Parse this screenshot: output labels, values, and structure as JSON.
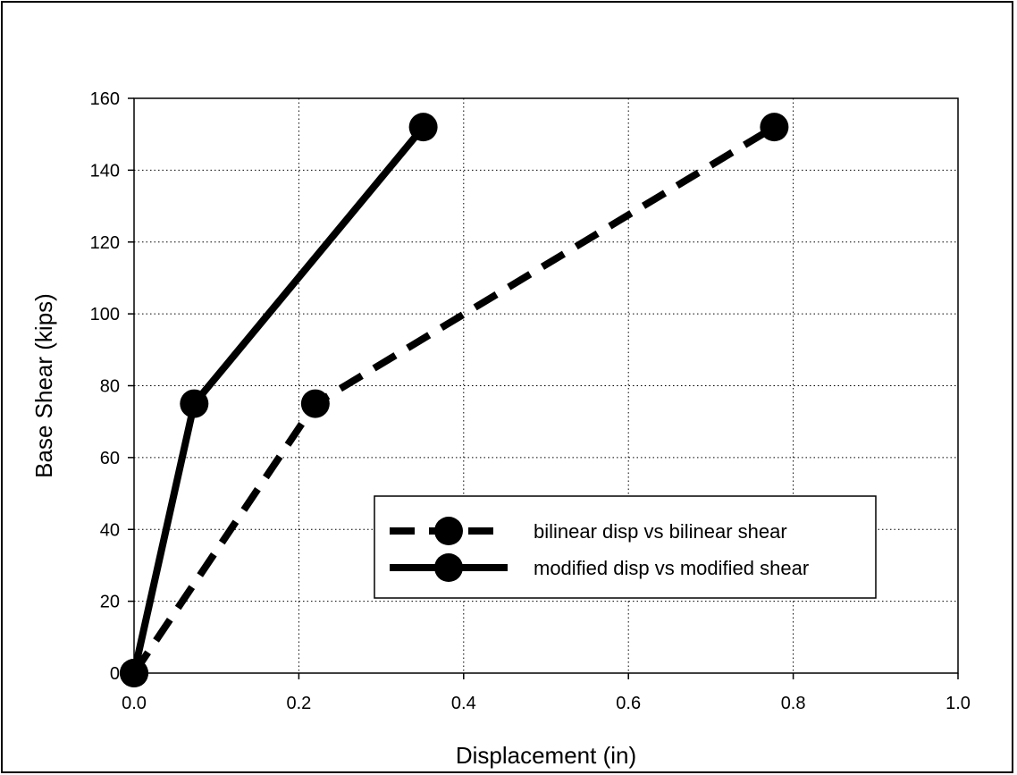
{
  "chart_data": {
    "type": "line",
    "xlabel": "Displacement (in)",
    "ylabel": "Base Shear (kips)",
    "xlim": [
      0,
      1.0
    ],
    "ylim": [
      0,
      160
    ],
    "xticks": [
      "0.0",
      "0.2",
      "0.4",
      "0.6",
      "0.8",
      "1.0"
    ],
    "yticks": [
      "0",
      "20",
      "40",
      "60",
      "80",
      "100",
      "120",
      "140",
      "160"
    ],
    "grid": true,
    "legend_position": "lower-right",
    "series": [
      {
        "name": "bilinear disp vs bilinear shear",
        "style": "dashed",
        "color": "#000000",
        "marker": "circle",
        "x": [
          0.0,
          0.22,
          0.777
        ],
        "y": [
          0,
          75,
          152
        ]
      },
      {
        "name": "modified disp vs modified shear",
        "style": "solid",
        "color": "#000000",
        "marker": "circle",
        "x": [
          0.0,
          0.073,
          0.351
        ],
        "y": [
          0,
          75,
          152
        ]
      }
    ]
  }
}
